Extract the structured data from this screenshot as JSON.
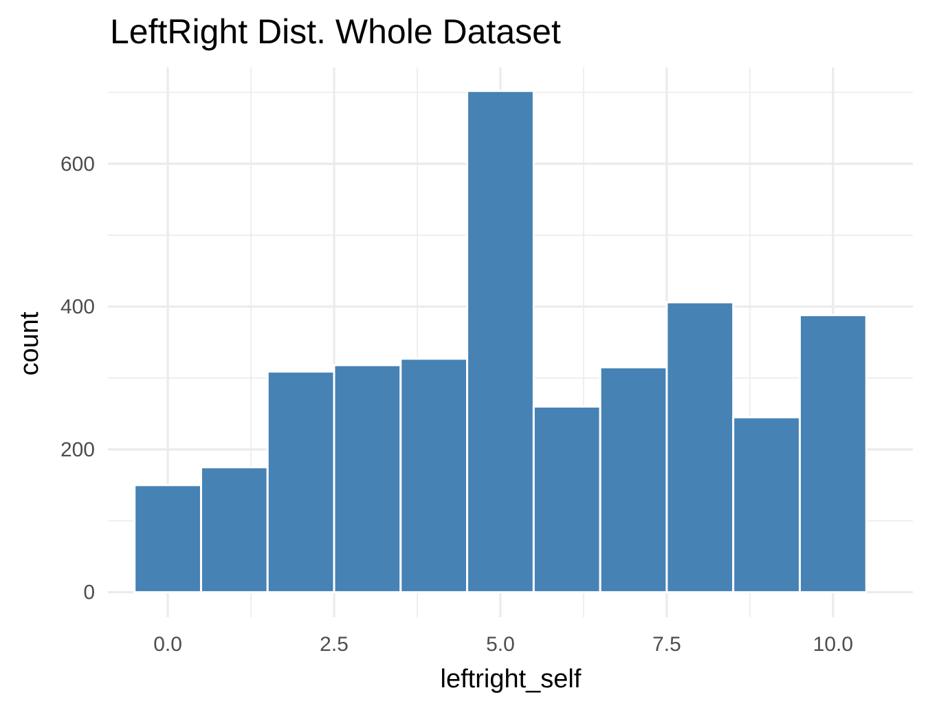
{
  "chart_data": {
    "type": "bar",
    "subtype": "histogram",
    "title": "LeftRight Dist. Whole Dataset",
    "xlabel": "leftright_self",
    "ylabel": "count",
    "bar_color": "#4682b4",
    "bar_border_color": "#ffffff",
    "grid": true,
    "grid_color": "#ebebeb",
    "theme": "minimal",
    "xlim": [
      -0.9,
      11.2
    ],
    "ylim": [
      -35,
      735
    ],
    "x_ticks": [
      0,
      2.5,
      5,
      7.5,
      10
    ],
    "x_tick_labels": [
      "0.0",
      "2.5",
      "5.0",
      "7.5",
      "10.0"
    ],
    "y_ticks": [
      0,
      200,
      400,
      600
    ],
    "y_tick_labels": [
      "0",
      "200",
      "400",
      "600"
    ],
    "bins": [
      {
        "x": 0,
        "x_start": -0.5,
        "x_end": 0.5,
        "count": 150
      },
      {
        "x": 1,
        "x_start": 0.5,
        "x_end": 1.5,
        "count": 175
      },
      {
        "x": 2,
        "x_start": 1.5,
        "x_end": 2.5,
        "count": 309
      },
      {
        "x": 3,
        "x_start": 2.5,
        "x_end": 3.5,
        "count": 318
      },
      {
        "x": 4,
        "x_start": 3.5,
        "x_end": 4.5,
        "count": 327
      },
      {
        "x": 5,
        "x_start": 4.5,
        "x_end": 5.5,
        "count": 702
      },
      {
        "x": 6,
        "x_start": 5.5,
        "x_end": 6.5,
        "count": 260
      },
      {
        "x": 7,
        "x_start": 6.5,
        "x_end": 7.5,
        "count": 315
      },
      {
        "x": 8,
        "x_start": 7.5,
        "x_end": 8.5,
        "count": 406
      },
      {
        "x": 9,
        "x_start": 8.5,
        "x_end": 9.5,
        "count": 245
      },
      {
        "x": 10,
        "x_start": 9.5,
        "x_end": 10.5,
        "count": 388
      }
    ]
  }
}
